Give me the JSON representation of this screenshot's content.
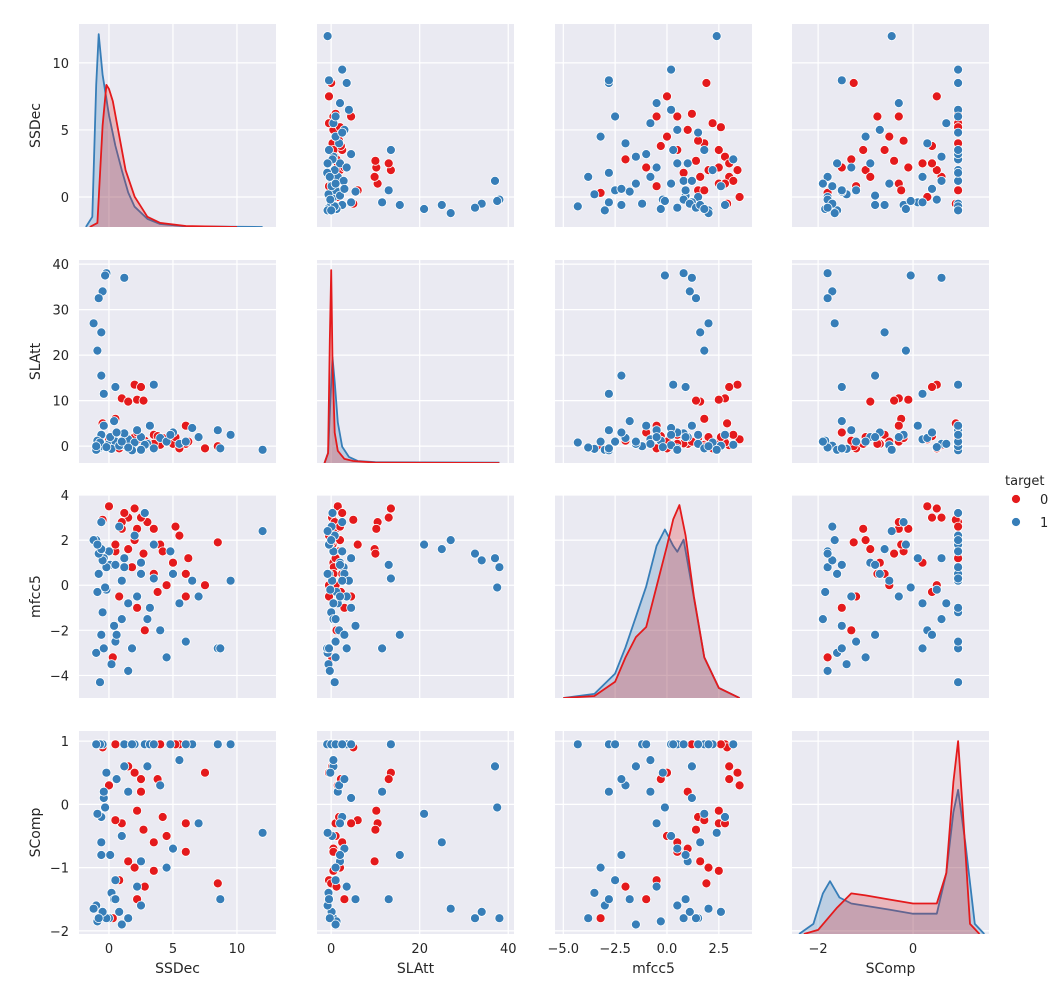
{
  "chart_data": {
    "type": "pairplot",
    "variables": [
      "SSDec",
      "SLAtt",
      "mfcc5",
      "SComp"
    ],
    "hue": "target",
    "legend": {
      "title": "target",
      "placement": "right",
      "entries": [
        {
          "label": "0",
          "color": "#e41a1c"
        },
        {
          "label": "1",
          "color": "#377eb8"
        }
      ]
    },
    "background": "#eaeaf2",
    "grid": true,
    "axes": {
      "SSDec": {
        "range": [
          -2.34,
          13.05
        ],
        "ticks": [
          0,
          5,
          10
        ],
        "yrange": [
          -2.24,
          12.9
        ],
        "yticks": [
          0,
          5,
          10
        ]
      },
      "SLAtt": {
        "range": [
          -3.2,
          41.3
        ],
        "ticks": [
          0,
          20,
          40
        ],
        "yrange": [
          -3.7,
          40.9
        ],
        "yticks": [
          0,
          10,
          20,
          30,
          40
        ]
      },
      "mfcc5": {
        "range": [
          -5.4,
          4.1
        ],
        "ticks": [
          -5.0,
          -2.5,
          0.0,
          2.5
        ],
        "tick_labels": [
          "−5.0",
          "−2.5",
          "0.0",
          "2.5"
        ],
        "yrange": [
          -5.0,
          4.0
        ],
        "yticks": [
          -4,
          -2,
          0,
          2,
          4
        ],
        "ytick_labels": [
          "−4",
          "−2",
          "0",
          "2",
          "4"
        ]
      },
      "SComp": {
        "range": [
          -2.55,
          1.6
        ],
        "ticks": [
          -2,
          0
        ],
        "tick_labels": [
          "−2",
          "0"
        ],
        "yrange": [
          -2.05,
          1.16
        ],
        "yticks": [
          -2,
          -1,
          0,
          1
        ],
        "ytick_labels": [
          "−2",
          "−1",
          "0",
          "1"
        ]
      }
    },
    "observations": {
      "0": [
        [
          0.5,
          0.5,
          1.5,
          0.95
        ],
        [
          1,
          1,
          2.5,
          -0.3
        ],
        [
          1.5,
          0.2,
          3,
          0.6
        ],
        [
          2,
          2,
          2,
          -1
        ],
        [
          2.5,
          1.5,
          1,
          0.2
        ],
        [
          3,
          0.8,
          2.8,
          0.95
        ],
        [
          3.5,
          2.5,
          0.5,
          -0.6
        ],
        [
          4,
          0.3,
          1.8,
          0.95
        ],
        [
          4.5,
          1,
          0,
          -0.5
        ],
        [
          5,
          0.5,
          1,
          -0.7
        ],
        [
          0,
          1.5,
          3.5,
          0.3
        ],
        [
          0.8,
          -0.5,
          -0.5,
          -1.2
        ],
        [
          2.2,
          3,
          -1,
          -1.5
        ],
        [
          1.8,
          0.6,
          0.8,
          0.95
        ],
        [
          3.8,
          2.2,
          -0.3,
          0.4
        ],
        [
          6,
          0.5,
          0.5,
          -0.75
        ],
        [
          7.5,
          -0.5,
          0,
          0.5
        ],
        [
          8.5,
          0,
          1.9,
          -1.25
        ],
        [
          2.8,
          1.2,
          -2,
          -1.3
        ],
        [
          1.2,
          2.5,
          3.2,
          0.95
        ],
        [
          5.5,
          -0.5,
          2.2,
          0.95
        ],
        [
          0.3,
          0.2,
          -3.2,
          -1.8
        ],
        [
          4.2,
          1.8,
          1.5,
          -0.2
        ],
        [
          2,
          13.5,
          3.4,
          0.5
        ],
        [
          2.5,
          13,
          3.0,
          0.4
        ],
        [
          1,
          10.5,
          2.8,
          -0.3
        ],
        [
          2.2,
          10.2,
          2.5,
          -0.1
        ],
        [
          1.5,
          9.8,
          1.6,
          -0.9
        ],
        [
          2.7,
          10,
          1.4,
          -0.4
        ],
        [
          0.5,
          6,
          1.8,
          -0.25
        ],
        [
          3.5,
          0.5,
          2.5,
          -1.05
        ],
        [
          6,
          4.5,
          -0.5,
          -0.3
        ],
        [
          -0.5,
          5,
          2.9,
          0.9
        ],
        [
          5.2,
          2,
          2.6,
          0.95
        ],
        [
          6.2,
          1,
          1.2,
          0.95
        ]
      ],
      "1": [
        [
          -0.8,
          -0.5,
          0.5,
          0.95
        ],
        [
          -0.5,
          0,
          -1.2,
          0.95
        ],
        [
          0,
          0.5,
          1.5,
          -1.8
        ],
        [
          0.5,
          1,
          -2.5,
          -1.2
        ],
        [
          1,
          0.2,
          0.2,
          -0.5
        ],
        [
          1.5,
          1.5,
          -0.8,
          0.2
        ],
        [
          2,
          0.8,
          2.2,
          0.95
        ],
        [
          -1,
          -0.8,
          -3,
          -1.6
        ],
        [
          2.5,
          2,
          1,
          -0.9
        ],
        [
          3,
          0.5,
          -1.5,
          0.6
        ],
        [
          -0.6,
          2.5,
          2.8,
          -0.2
        ],
        [
          0.2,
          -0.6,
          -3.5,
          -1.4
        ],
        [
          1.2,
          2.8,
          0.8,
          0.95
        ],
        [
          4,
          1.8,
          -2,
          0.3
        ],
        [
          5,
          3,
          0.5,
          -0.7
        ],
        [
          3.5,
          -0.5,
          1.8,
          0.95
        ],
        [
          -0.9,
          1.2,
          -0.3,
          -1.85
        ],
        [
          0.8,
          0.1,
          2.6,
          -1.7
        ],
        [
          1.8,
          -0.9,
          -2.8,
          0.95
        ],
        [
          2.2,
          3.5,
          -0.5,
          -1.3
        ],
        [
          6.5,
          4,
          0.2,
          0.95
        ],
        [
          7,
          2,
          -0.5,
          -0.3
        ],
        [
          8.5,
          3.5,
          -2.8,
          0.95
        ],
        [
          9.5,
          2.5,
          0.2,
          0.95
        ],
        [
          4.5,
          1,
          -3.2,
          -1
        ],
        [
          -0.4,
          4.5,
          1.2,
          0.1
        ],
        [
          0.4,
          5.5,
          -1.8,
          -1.5
        ],
        [
          2.8,
          0.3,
          3.2,
          0.95
        ],
        [
          -0.7,
          0.8,
          -4.3,
          0.95
        ],
        [
          1.5,
          -0.3,
          -3.8,
          -1.8
        ],
        [
          0.1,
          2,
          0.9,
          -0.8
        ],
        [
          3.2,
          4.5,
          -1,
          0.95
        ],
        [
          5.5,
          0.5,
          -0.8,
          0.7
        ],
        [
          -0.2,
          -0.2,
          -0.2,
          0.5
        ],
        [
          1,
          1,
          -1.5,
          -1.9
        ],
        [
          -1,
          0,
          2,
          0.95
        ],
        [
          2.5,
          -0.8,
          0.5,
          -1.6
        ],
        [
          0.6,
          3,
          -2.2,
          0.4
        ],
        [
          6,
          1,
          -2.5,
          0.95
        ],
        [
          4.8,
          2.5,
          1.5,
          0.95
        ],
        [
          12,
          -0.8,
          2.4,
          -0.45
        ],
        [
          -0.2,
          38,
          0.8,
          -1.8
        ],
        [
          1.2,
          37,
          1.2,
          0.6
        ],
        [
          -0.3,
          37.5,
          -0.1,
          -0.05
        ],
        [
          -0.5,
          34,
          1.1,
          -1.7
        ],
        [
          -0.8,
          32.5,
          1.4,
          -1.8
        ],
        [
          -1.2,
          27,
          2.0,
          -1.65
        ],
        [
          -0.6,
          25,
          1.6,
          -0.6
        ],
        [
          -0.9,
          21,
          1.8,
          -0.15
        ],
        [
          -0.6,
          15.5,
          -2.2,
          -0.8
        ],
        [
          -0.4,
          11.5,
          -2.8,
          0.2
        ],
        [
          0.5,
          13,
          0.9,
          -1.5
        ],
        [
          3.5,
          13.5,
          0.3,
          0.95
        ],
        [
          8.7,
          -0.5,
          -2.8,
          -1.5
        ]
      ]
    },
    "kde": {
      "SSDec": {
        "0": {
          "x": [
            -1.5,
            -0.9,
            -0.5,
            -0.2,
            0,
            0.3,
            0.8,
            1.3,
            2,
            2.5,
            3,
            4,
            6,
            10
          ],
          "density": [
            0,
            0.02,
            0.5,
            0.7,
            0.68,
            0.62,
            0.45,
            0.28,
            0.15,
            0.1,
            0.05,
            0.02,
            0.005,
            0
          ]
        },
        "1": {
          "x": [
            -1.8,
            -1.3,
            -1,
            -0.8,
            -0.5,
            0,
            0.5,
            1,
            1.5,
            2,
            3,
            4,
            6,
            12
          ],
          "density": [
            0,
            0.05,
            0.7,
            0.95,
            0.75,
            0.55,
            0.4,
            0.28,
            0.17,
            0.1,
            0.04,
            0.015,
            0.003,
            0
          ]
        }
      },
      "SLAtt": {
        "0": {
          "x": [
            -1.5,
            -0.7,
            -0.3,
            0,
            0.3,
            0.8,
            1.5,
            3,
            5,
            10,
            38
          ],
          "density": [
            0,
            0.05,
            0.6,
            0.95,
            0.5,
            0.15,
            0.06,
            0.02,
            0.01,
            0.002,
            0
          ]
        },
        "1": {
          "x": [
            -1.5,
            -0.7,
            -0.2,
            0.3,
            0.8,
            1.5,
            2.5,
            4,
            6,
            10,
            38
          ],
          "density": [
            0,
            0.05,
            0.3,
            0.52,
            0.4,
            0.2,
            0.08,
            0.03,
            0.01,
            0.004,
            0.002
          ]
        }
      },
      "mfcc5": {
        "0": {
          "x": [
            -5,
            -3.5,
            -2.5,
            -2,
            -1.5,
            -1,
            -0.5,
            0,
            0.3,
            0.6,
            0.9,
            1.3,
            1.8,
            2.5,
            3.5
          ],
          "density": [
            0,
            0.01,
            0.08,
            0.2,
            0.3,
            0.35,
            0.55,
            0.75,
            0.88,
            0.95,
            0.8,
            0.5,
            0.2,
            0.05,
            0
          ]
        },
        "1": {
          "x": [
            -5,
            -3.5,
            -2.5,
            -2,
            -1.5,
            -1,
            -0.5,
            -0.1,
            0.3,
            0.5,
            0.8,
            1.2,
            1.8,
            2.5,
            3.5
          ],
          "density": [
            0,
            0.02,
            0.12,
            0.25,
            0.4,
            0.55,
            0.75,
            0.83,
            0.75,
            0.72,
            0.78,
            0.55,
            0.2,
            0.05,
            0
          ]
        }
      },
      "SComp": {
        "0": {
          "x": [
            -2.3,
            -2,
            -1.6,
            -1.3,
            -1,
            -0.5,
            0,
            0.5,
            0.7,
            0.85,
            0.95,
            1.05,
            1.2,
            1.4
          ],
          "density": [
            0,
            0.02,
            0.13,
            0.2,
            0.19,
            0.17,
            0.15,
            0.15,
            0.3,
            0.75,
            0.95,
            0.6,
            0.05,
            0
          ]
        },
        "1": {
          "x": [
            -2.4,
            -2.1,
            -1.9,
            -1.75,
            -1.55,
            -1.3,
            -0.5,
            0,
            0.5,
            0.7,
            0.85,
            0.95,
            1.1,
            1.3,
            1.5
          ],
          "density": [
            0,
            0.05,
            0.2,
            0.26,
            0.18,
            0.15,
            0.12,
            0.1,
            0.1,
            0.3,
            0.6,
            0.71,
            0.45,
            0.05,
            0
          ]
        }
      }
    }
  }
}
